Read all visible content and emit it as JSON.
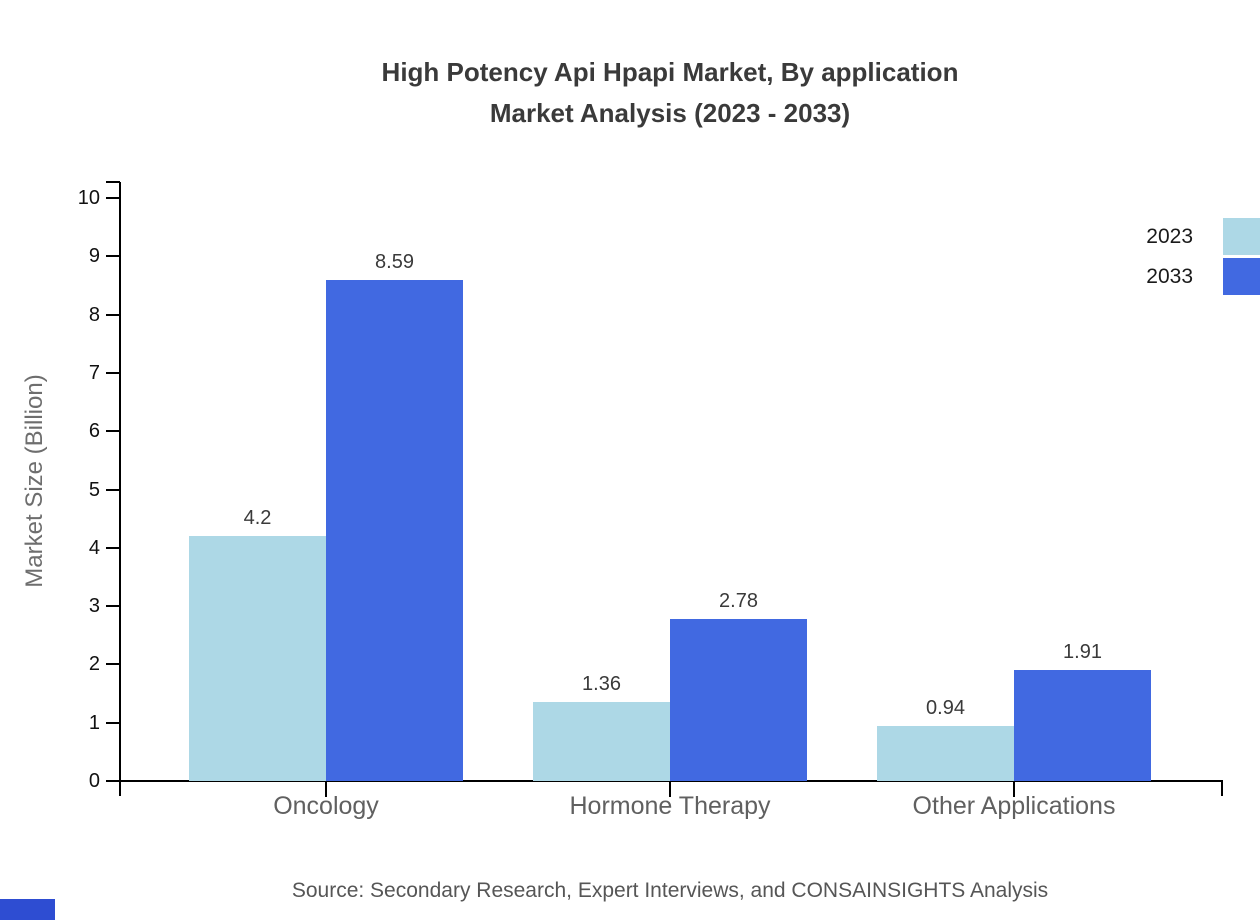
{
  "title": {
    "line1": "High Potency Api Hpapi Market, By application",
    "line2": "Market Analysis (2023 - 2033)"
  },
  "source": "Source: Secondary Research, Expert Interviews, and CONSAINSIGHTS Analysis",
  "footer": {
    "corner_color": "#2E4DD2"
  },
  "chart_data": {
    "type": "bar",
    "title": "High Potency Api Hpapi Market, By application Market Analysis (2023 - 2033)",
    "categories": [
      "Oncology",
      "Hormone Therapy",
      "Other Applications"
    ],
    "series": [
      {
        "name": "2023",
        "color": "#ADD8E6",
        "values": [
          4.2,
          1.36,
          0.94
        ]
      },
      {
        "name": "2033",
        "color": "#4169E1",
        "values": [
          8.59,
          2.78,
          1.91
        ]
      }
    ],
    "xlabel": "",
    "ylabel": "Market Size (Billion)",
    "ylim": [
      0,
      10
    ],
    "ytick_step": 1,
    "yticks": [
      0,
      1,
      2,
      3,
      4,
      5,
      6,
      7,
      8,
      9,
      10
    ],
    "grid": false,
    "legend_position": "top-right",
    "axis_color": "#000000",
    "tick_label_color": "#111111",
    "category_label_color": "#606060",
    "value_label_color": "#3a3a3a"
  }
}
